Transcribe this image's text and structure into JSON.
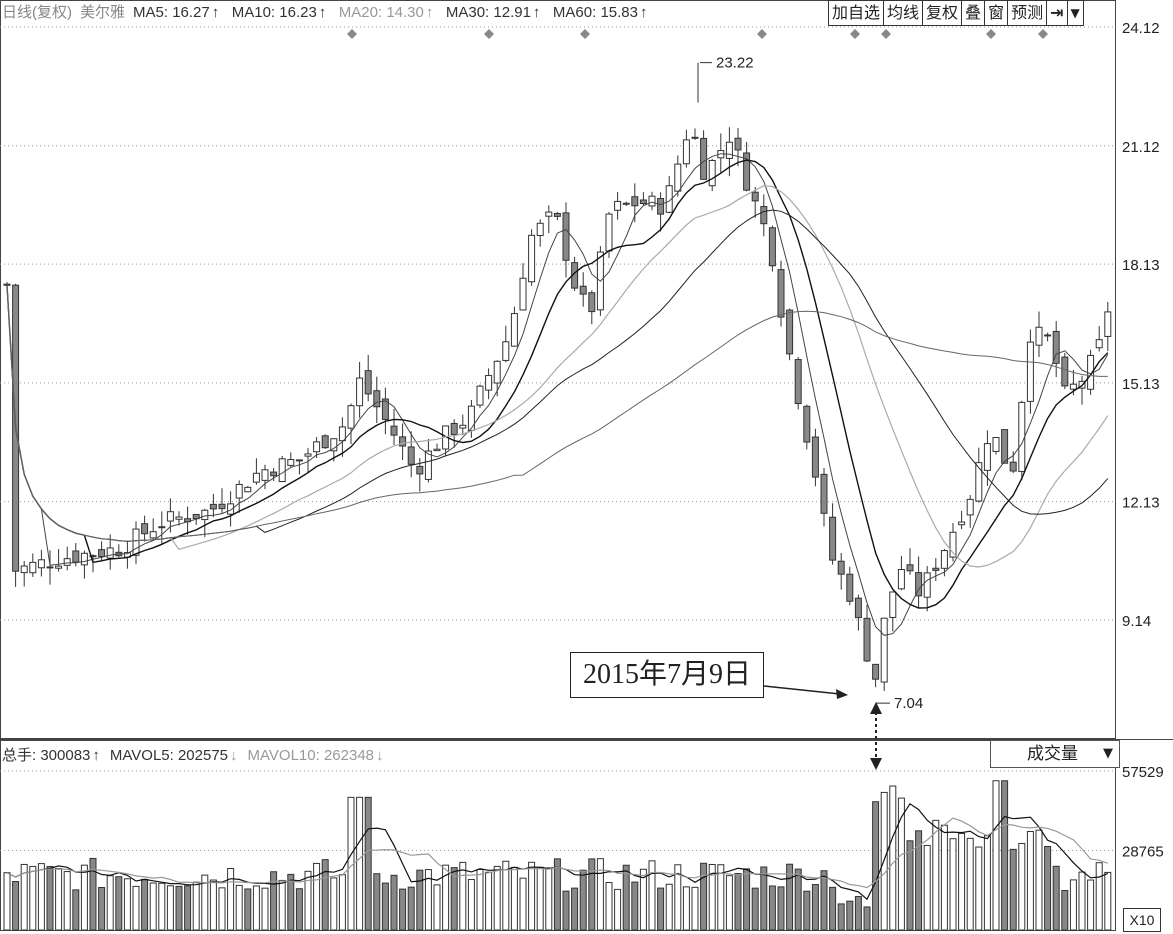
{
  "header": {
    "period_label": "日线(复权)",
    "stock_name": "美尔雅",
    "ma": [
      {
        "label": "MA5: 16.27",
        "arrow": "↑",
        "color": "#333333"
      },
      {
        "label": "MA10: 16.23",
        "arrow": "↑",
        "color": "#333333"
      },
      {
        "label": "MA20: 14.30",
        "arrow": "↑",
        "color": "#999999"
      },
      {
        "label": "MA30: 12.91",
        "arrow": "↑",
        "color": "#333333"
      },
      {
        "label": "MA60: 15.83",
        "arrow": "↑",
        "color": "#333333"
      }
    ]
  },
  "toolbar": {
    "buttons": [
      "加自选",
      "均线",
      "复权",
      "叠",
      "窗",
      "预测"
    ],
    "nav_icon": "jump-to-end-icon",
    "menu_icon": "dropdown-arrow-icon"
  },
  "volume_header": {
    "total_label": "总手: 300083",
    "total_arrow": "↑",
    "mavol5_label": "MAVOL5: 202575",
    "mavol5_arrow": "↓",
    "mavol10_label": "MAVOL10: 262348",
    "mavol10_arrow": "↓"
  },
  "volume_select": {
    "label": "成交量"
  },
  "volume_scale": "X10",
  "annotation": {
    "date_text": "2015年7月9日"
  },
  "chart_data": {
    "type": "candlestick",
    "price_axis": {
      "ticks": [
        9.14,
        12.13,
        15.13,
        18.13,
        21.12,
        24.12
      ],
      "labels": [
        "9.14",
        "12.13",
        "15.13",
        "18.13",
        "21.12",
        "24.12"
      ],
      "ylim": [
        6.15,
        24.12
      ]
    },
    "volume_axis": {
      "ticks": [
        28765,
        57529
      ],
      "labels": [
        "28765",
        "57529"
      ]
    },
    "high_label": "23.22",
    "high_value": 23.22,
    "low_label": "7.04",
    "low_value": 7.04,
    "grid": true,
    "colors": {
      "up": "#ffffff",
      "down": "#888888",
      "outline": "#333333"
    }
  }
}
